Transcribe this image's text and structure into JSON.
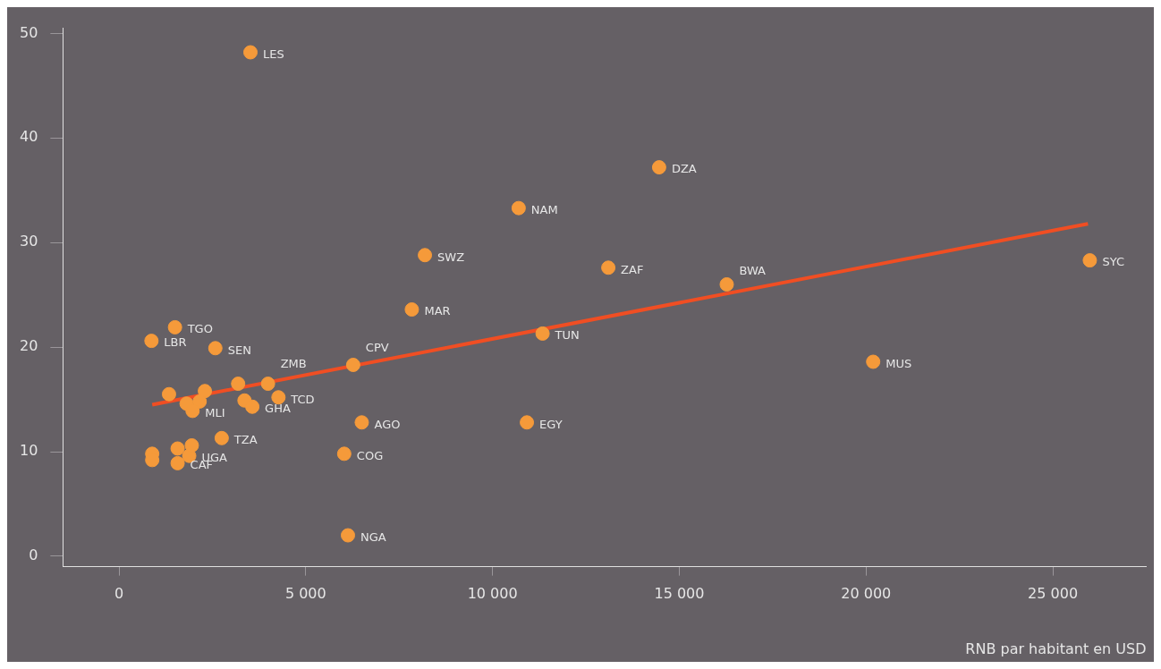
{
  "chart_data": {
    "type": "scatter",
    "xlabel": "RNB par habitant en USD",
    "xlim": [
      -1500,
      27500
    ],
    "ylim": [
      -1,
      50.5
    ],
    "xticks": [
      0,
      {
        "value": 5000,
        "label": "5 000"
      },
      {
        "value": 10000,
        "label": "10 000"
      },
      {
        "value": 15000,
        "label": "15 000"
      },
      {
        "value": 20000,
        "label": "20 000"
      },
      {
        "value": 25000,
        "label": "25 000"
      }
    ],
    "yticks": [
      0,
      10,
      20,
      30,
      40,
      50
    ],
    "grid": false,
    "legend": false,
    "marker": "circle",
    "series": [
      {
        "color": "#f59a3a",
        "x": [
          3520,
          14460,
          10700,
          8190,
          13100,
          16270,
          25990,
          7840,
          1500,
          11340,
          870,
          2580,
          20190,
          6270,
          3990,
          3190,
          4270,
          2300,
          1340,
          2160,
          1810,
          1970,
          3360,
          3570,
          6500,
          10920,
          2750,
          6030,
          1880,
          1950,
          1570,
          1570,
          890,
          890,
          6130
        ],
        "values": [
          48.2,
          37.2,
          33.3,
          28.8,
          27.6,
          26.0,
          28.3,
          23.6,
          21.9,
          21.3,
          20.6,
          19.9,
          18.6,
          18.3,
          16.5,
          16.5,
          15.2,
          15.8,
          15.5,
          14.8,
          14.6,
          13.9,
          14.9,
          14.3,
          12.8,
          12.8,
          11.3,
          9.8,
          9.6,
          10.6,
          10.3,
          8.9,
          9.8,
          9.2,
          2.0
        ],
        "value_labels": [
          "LES",
          "DZA",
          "NAM",
          "SWZ",
          "ZAF",
          "BWA",
          "SYC",
          "MAR",
          "TGO",
          "TUN",
          "LBR",
          "SEN",
          "MUS",
          "CPV",
          "ZMB",
          null,
          "TCD",
          null,
          null,
          null,
          null,
          "MLI",
          null,
          "GHA",
          "AGO",
          "EGY",
          "TZA",
          "COG",
          "UGA",
          null,
          null,
          "CAF",
          null,
          null,
          "NGA"
        ]
      },
      {
        "type": "line",
        "color": "#f04e23",
        "line_style": "solid",
        "marker": "none",
        "x": [
          890,
          25940
        ],
        "values": [
          14.5,
          31.8
        ]
      }
    ]
  }
}
